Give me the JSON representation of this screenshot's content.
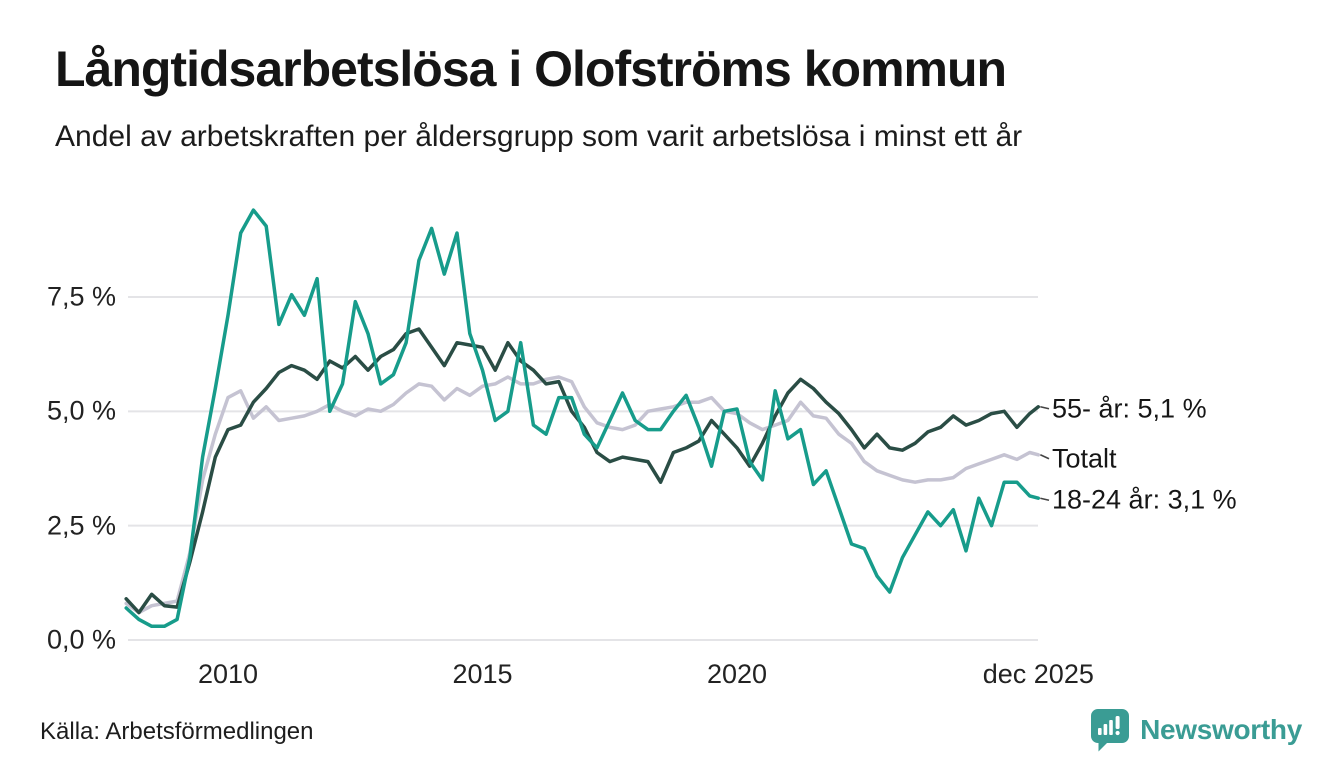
{
  "header": {
    "title": "Långtidsarbetslösa i Olofströms kommun",
    "subtitle": "Andel av arbetskraften per åldersgrupp som varit arbetslösa i minst ett år"
  },
  "chart_data": {
    "type": "line",
    "title": "Långtidsarbetslösa i Olofströms kommun",
    "subtitle": "Andel av arbetskraften per åldersgrupp som varit arbetslösa i minst ett år",
    "xlabel": "",
    "ylabel": "",
    "grid": "horizontal",
    "legend_position": "right-end-labels",
    "ylim": [
      0,
      9.6
    ],
    "xlim": [
      2008,
      2025.92
    ],
    "colors": {
      "grid": "#e4e4e7",
      "connector": "#444444",
      "axis_text": "#222222"
    },
    "y_ticks": [
      {
        "label": "0,0 %",
        "value": 0
      },
      {
        "label": "2,5 %",
        "value": 2.5
      },
      {
        "label": "5,0 %",
        "value": 5
      },
      {
        "label": "7,5 %",
        "value": 7.5
      }
    ],
    "x_ticks": [
      {
        "label": "2010",
        "x": 2010
      },
      {
        "label": "2015",
        "x": 2015
      },
      {
        "label": "2020",
        "x": 2020
      },
      {
        "label": "dec 2025",
        "x": 2025.92
      }
    ],
    "x": [
      2008,
      2008.25,
      2008.5,
      2008.75,
      2009,
      2009.25,
      2009.5,
      2009.75,
      2010,
      2010.25,
      2010.5,
      2010.75,
      2011,
      2011.25,
      2011.5,
      2011.75,
      2012,
      2012.25,
      2012.5,
      2012.75,
      2013,
      2013.25,
      2013.5,
      2013.75,
      2014,
      2014.25,
      2014.5,
      2014.75,
      2015,
      2015.25,
      2015.5,
      2015.75,
      2016,
      2016.25,
      2016.5,
      2016.75,
      2017,
      2017.25,
      2017.5,
      2017.75,
      2018,
      2018.25,
      2018.5,
      2018.75,
      2019,
      2019.25,
      2019.5,
      2019.75,
      2020,
      2020.25,
      2020.5,
      2020.75,
      2021,
      2021.25,
      2021.5,
      2021.75,
      2022,
      2022.25,
      2022.5,
      2022.75,
      2023,
      2023.25,
      2023.5,
      2023.75,
      2024,
      2024.25,
      2024.5,
      2024.75,
      2025,
      2025.25,
      2025.5,
      2025.75,
      2025.92
    ],
    "series": [
      {
        "name": "55- år",
        "end_label": "55- år: 5,1 %",
        "end_value_label": "5,1 %",
        "color": "#2a4d45",
        "values": [
          0.9,
          0.6,
          1.0,
          0.75,
          0.72,
          1.7,
          2.8,
          4.0,
          4.6,
          4.7,
          5.2,
          5.5,
          5.85,
          6.0,
          5.9,
          5.7,
          6.1,
          5.95,
          6.2,
          5.9,
          6.2,
          6.35,
          6.7,
          6.8,
          6.4,
          6.0,
          6.5,
          6.45,
          6.4,
          5.9,
          6.5,
          6.1,
          5.9,
          5.6,
          5.65,
          5.0,
          4.65,
          4.1,
          3.9,
          4.0,
          3.95,
          3.9,
          3.45,
          4.1,
          4.2,
          4.35,
          4.8,
          4.5,
          4.2,
          3.8,
          4.3,
          4.9,
          5.4,
          5.7,
          5.5,
          5.2,
          4.95,
          4.6,
          4.2,
          4.5,
          4.2,
          4.15,
          4.3,
          4.55,
          4.65,
          4.9,
          4.7,
          4.8,
          4.95,
          5.0,
          4.65,
          4.95,
          5.1
        ]
      },
      {
        "name": "Totalt",
        "end_label": "Totalt",
        "end_value_label": "",
        "color": "#c5c3d2",
        "values": [
          0.8,
          0.6,
          0.75,
          0.8,
          0.85,
          1.9,
          3.5,
          4.5,
          5.3,
          5.45,
          4.85,
          5.1,
          4.8,
          4.85,
          4.9,
          5.0,
          5.15,
          5.0,
          4.9,
          5.05,
          5.0,
          5.15,
          5.4,
          5.6,
          5.55,
          5.25,
          5.5,
          5.35,
          5.55,
          5.6,
          5.75,
          5.6,
          5.6,
          5.7,
          5.75,
          5.65,
          5.1,
          4.75,
          4.65,
          4.6,
          4.7,
          5.0,
          5.05,
          5.1,
          5.2,
          5.2,
          5.3,
          5.0,
          4.95,
          4.75,
          4.6,
          4.7,
          4.8,
          5.2,
          4.9,
          4.85,
          4.5,
          4.3,
          3.9,
          3.7,
          3.6,
          3.5,
          3.45,
          3.5,
          3.5,
          3.55,
          3.75,
          3.85,
          3.95,
          4.05,
          3.95,
          4.1,
          4.05
        ]
      },
      {
        "name": "18-24 år",
        "end_label": "18-24 år: 3,1 %",
        "end_value_label": "3,1 %",
        "color": "#179c8b",
        "values": [
          0.7,
          0.45,
          0.3,
          0.3,
          0.45,
          1.8,
          4.0,
          5.5,
          7.1,
          8.9,
          9.4,
          9.05,
          6.9,
          7.55,
          7.1,
          7.9,
          5.0,
          5.6,
          7.4,
          6.7,
          5.6,
          5.8,
          6.5,
          8.3,
          9.0,
          8.0,
          8.9,
          6.7,
          5.9,
          4.8,
          5.0,
          6.5,
          4.7,
          4.5,
          5.3,
          5.3,
          4.5,
          4.2,
          4.8,
          5.4,
          4.8,
          4.6,
          4.6,
          5.0,
          5.35,
          4.65,
          3.8,
          5.0,
          5.05,
          3.9,
          3.5,
          5.45,
          4.4,
          4.6,
          3.4,
          3.7,
          2.9,
          2.1,
          2.0,
          1.4,
          1.05,
          1.8,
          2.3,
          2.8,
          2.5,
          2.85,
          1.95,
          3.1,
          2.5,
          3.45,
          3.45,
          3.15,
          3.1
        ]
      }
    ]
  },
  "footer": {
    "source": "Källa: Arbetsförmedlingen",
    "brand": "Newsworthy"
  }
}
